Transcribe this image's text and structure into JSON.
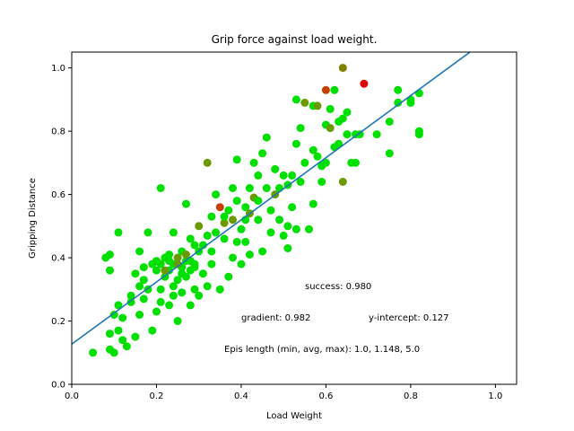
{
  "chart_data": {
    "type": "scatter",
    "title": "Grip force against load weight.",
    "xlabel": "Load Weight",
    "ylabel": "Gripping Distance",
    "xlim": [
      0.0,
      1.05
    ],
    "ylim": [
      0.0,
      1.05
    ],
    "xticks": [
      "0.0",
      "0.2",
      "0.4",
      "0.6",
      "0.8",
      "1.0"
    ],
    "yticks": [
      "0.0",
      "0.2",
      "0.4",
      "0.6",
      "0.8",
      "1.0"
    ],
    "grid": false,
    "fit_line": {
      "gradient": 0.982,
      "intercept": 0.127,
      "color": "#1f77b4"
    },
    "annotations": {
      "success": "success: 0.980",
      "gradient": "gradient: 0.982",
      "intercept": "y-intercept: 0.127",
      "episodes": "Epis length (min, avg, max): 1.0, 1.148, 5.0"
    },
    "colors": {
      "green": "#00e000",
      "olive": "#6a9a00",
      "dark_olive": "#808000",
      "orange_red": "#c84000",
      "red": "#e00000"
    },
    "points": [
      {
        "x": 0.05,
        "y": 0.1,
        "c": "green"
      },
      {
        "x": 0.08,
        "y": 0.4,
        "c": "green"
      },
      {
        "x": 0.09,
        "y": 0.41,
        "c": "green"
      },
      {
        "x": 0.09,
        "y": 0.36,
        "c": "green"
      },
      {
        "x": 0.09,
        "y": 0.16,
        "c": "green"
      },
      {
        "x": 0.09,
        "y": 0.11,
        "c": "green"
      },
      {
        "x": 0.1,
        "y": 0.22,
        "c": "green"
      },
      {
        "x": 0.1,
        "y": 0.1,
        "c": "green"
      },
      {
        "x": 0.11,
        "y": 0.25,
        "c": "green"
      },
      {
        "x": 0.11,
        "y": 0.17,
        "c": "green"
      },
      {
        "x": 0.11,
        "y": 0.48,
        "c": "green"
      },
      {
        "x": 0.12,
        "y": 0.21,
        "c": "green"
      },
      {
        "x": 0.12,
        "y": 0.14,
        "c": "green"
      },
      {
        "x": 0.13,
        "y": 0.12,
        "c": "green"
      },
      {
        "x": 0.14,
        "y": 0.28,
        "c": "green"
      },
      {
        "x": 0.14,
        "y": 0.26,
        "c": "green"
      },
      {
        "x": 0.15,
        "y": 0.15,
        "c": "green"
      },
      {
        "x": 0.15,
        "y": 0.35,
        "c": "green"
      },
      {
        "x": 0.16,
        "y": 0.22,
        "c": "green"
      },
      {
        "x": 0.16,
        "y": 0.42,
        "c": "green"
      },
      {
        "x": 0.16,
        "y": 0.31,
        "c": "green"
      },
      {
        "x": 0.17,
        "y": 0.37,
        "c": "green"
      },
      {
        "x": 0.17,
        "y": 0.33,
        "c": "green"
      },
      {
        "x": 0.18,
        "y": 0.48,
        "c": "green"
      },
      {
        "x": 0.19,
        "y": 0.17,
        "c": "green"
      },
      {
        "x": 0.19,
        "y": 0.38,
        "c": "green"
      },
      {
        "x": 0.2,
        "y": 0.23,
        "c": "green"
      },
      {
        "x": 0.2,
        "y": 0.36,
        "c": "green"
      },
      {
        "x": 0.21,
        "y": 0.62,
        "c": "green"
      },
      {
        "x": 0.21,
        "y": 0.3,
        "c": "green"
      },
      {
        "x": 0.21,
        "y": 0.38,
        "c": "green"
      },
      {
        "x": 0.22,
        "y": 0.4,
        "c": "green"
      },
      {
        "x": 0.22,
        "y": 0.34,
        "c": "green"
      },
      {
        "x": 0.23,
        "y": 0.25,
        "c": "green"
      },
      {
        "x": 0.23,
        "y": 0.41,
        "c": "green"
      },
      {
        "x": 0.23,
        "y": 0.36,
        "c": "green"
      },
      {
        "x": 0.24,
        "y": 0.31,
        "c": "green"
      },
      {
        "x": 0.24,
        "y": 0.48,
        "c": "green"
      },
      {
        "x": 0.24,
        "y": 0.38,
        "c": "green"
      },
      {
        "x": 0.25,
        "y": 0.2,
        "c": "green"
      },
      {
        "x": 0.25,
        "y": 0.33,
        "c": "green"
      },
      {
        "x": 0.25,
        "y": 0.4,
        "c": "olive"
      },
      {
        "x": 0.26,
        "y": 0.37,
        "c": "green"
      },
      {
        "x": 0.26,
        "y": 0.29,
        "c": "green"
      },
      {
        "x": 0.26,
        "y": 0.42,
        "c": "green"
      },
      {
        "x": 0.27,
        "y": 0.39,
        "c": "green"
      },
      {
        "x": 0.27,
        "y": 0.57,
        "c": "green"
      },
      {
        "x": 0.27,
        "y": 0.34,
        "c": "green"
      },
      {
        "x": 0.28,
        "y": 0.46,
        "c": "green"
      },
      {
        "x": 0.28,
        "y": 0.25,
        "c": "green"
      },
      {
        "x": 0.28,
        "y": 0.36,
        "c": "green"
      },
      {
        "x": 0.29,
        "y": 0.3,
        "c": "green"
      },
      {
        "x": 0.29,
        "y": 0.44,
        "c": "green"
      },
      {
        "x": 0.29,
        "y": 0.38,
        "c": "green"
      },
      {
        "x": 0.3,
        "y": 0.5,
        "c": "olive"
      },
      {
        "x": 0.3,
        "y": 0.28,
        "c": "green"
      },
      {
        "x": 0.3,
        "y": 0.42,
        "c": "green"
      },
      {
        "x": 0.31,
        "y": 0.35,
        "c": "green"
      },
      {
        "x": 0.32,
        "y": 0.7,
        "c": "olive"
      },
      {
        "x": 0.32,
        "y": 0.31,
        "c": "green"
      },
      {
        "x": 0.32,
        "y": 0.47,
        "c": "green"
      },
      {
        "x": 0.33,
        "y": 0.53,
        "c": "green"
      },
      {
        "x": 0.33,
        "y": 0.42,
        "c": "green"
      },
      {
        "x": 0.34,
        "y": 0.6,
        "c": "green"
      },
      {
        "x": 0.35,
        "y": 0.56,
        "c": "orange_red"
      },
      {
        "x": 0.35,
        "y": 0.3,
        "c": "green"
      },
      {
        "x": 0.36,
        "y": 0.51,
        "c": "olive"
      },
      {
        "x": 0.36,
        "y": 0.46,
        "c": "green"
      },
      {
        "x": 0.37,
        "y": 0.55,
        "c": "green"
      },
      {
        "x": 0.37,
        "y": 0.34,
        "c": "green"
      },
      {
        "x": 0.38,
        "y": 0.62,
        "c": "green"
      },
      {
        "x": 0.38,
        "y": 0.52,
        "c": "olive"
      },
      {
        "x": 0.39,
        "y": 0.71,
        "c": "green"
      },
      {
        "x": 0.39,
        "y": 0.45,
        "c": "green"
      },
      {
        "x": 0.4,
        "y": 0.49,
        "c": "green"
      },
      {
        "x": 0.4,
        "y": 0.38,
        "c": "green"
      },
      {
        "x": 0.41,
        "y": 0.56,
        "c": "green"
      },
      {
        "x": 0.41,
        "y": 0.45,
        "c": "green"
      },
      {
        "x": 0.42,
        "y": 0.62,
        "c": "green"
      },
      {
        "x": 0.42,
        "y": 0.54,
        "c": "olive"
      },
      {
        "x": 0.43,
        "y": 0.7,
        "c": "green"
      },
      {
        "x": 0.43,
        "y": 0.59,
        "c": "olive"
      },
      {
        "x": 0.44,
        "y": 0.52,
        "c": "green"
      },
      {
        "x": 0.44,
        "y": 0.66,
        "c": "green"
      },
      {
        "x": 0.45,
        "y": 0.42,
        "c": "green"
      },
      {
        "x": 0.45,
        "y": 0.73,
        "c": "green"
      },
      {
        "x": 0.46,
        "y": 0.78,
        "c": "green"
      },
      {
        "x": 0.46,
        "y": 0.62,
        "c": "green"
      },
      {
        "x": 0.47,
        "y": 0.55,
        "c": "green"
      },
      {
        "x": 0.48,
        "y": 0.6,
        "c": "olive"
      },
      {
        "x": 0.48,
        "y": 0.68,
        "c": "green"
      },
      {
        "x": 0.49,
        "y": 0.52,
        "c": "green"
      },
      {
        "x": 0.5,
        "y": 0.47,
        "c": "green"
      },
      {
        "x": 0.5,
        "y": 0.66,
        "c": "green"
      },
      {
        "x": 0.51,
        "y": 0.43,
        "c": "green"
      },
      {
        "x": 0.51,
        "y": 0.63,
        "c": "green"
      },
      {
        "x": 0.52,
        "y": 0.56,
        "c": "green"
      },
      {
        "x": 0.52,
        "y": 0.66,
        "c": "green"
      },
      {
        "x": 0.53,
        "y": 0.49,
        "c": "green"
      },
      {
        "x": 0.53,
        "y": 0.76,
        "c": "green"
      },
      {
        "x": 0.53,
        "y": 0.9,
        "c": "green"
      },
      {
        "x": 0.54,
        "y": 0.64,
        "c": "green"
      },
      {
        "x": 0.55,
        "y": 0.7,
        "c": "green"
      },
      {
        "x": 0.55,
        "y": 0.89,
        "c": "olive"
      },
      {
        "x": 0.56,
        "y": 0.49,
        "c": "green"
      },
      {
        "x": 0.57,
        "y": 0.88,
        "c": "green"
      },
      {
        "x": 0.57,
        "y": 0.57,
        "c": "green"
      },
      {
        "x": 0.58,
        "y": 0.72,
        "c": "green"
      },
      {
        "x": 0.58,
        "y": 0.88,
        "c": "olive"
      },
      {
        "x": 0.59,
        "y": 0.64,
        "c": "green"
      },
      {
        "x": 0.6,
        "y": 0.93,
        "c": "orange_red"
      },
      {
        "x": 0.6,
        "y": 0.82,
        "c": "green"
      },
      {
        "x": 0.6,
        "y": 0.7,
        "c": "green"
      },
      {
        "x": 0.61,
        "y": 0.81,
        "c": "olive"
      },
      {
        "x": 0.61,
        "y": 0.87,
        "c": "green"
      },
      {
        "x": 0.62,
        "y": 0.93,
        "c": "green"
      },
      {
        "x": 0.62,
        "y": 0.75,
        "c": "green"
      },
      {
        "x": 0.63,
        "y": 0.76,
        "c": "green"
      },
      {
        "x": 0.63,
        "y": 0.83,
        "c": "green"
      },
      {
        "x": 0.64,
        "y": 0.64,
        "c": "olive"
      },
      {
        "x": 0.64,
        "y": 1.0,
        "c": "dark_olive"
      },
      {
        "x": 0.64,
        "y": 0.84,
        "c": "green"
      },
      {
        "x": 0.65,
        "y": 0.86,
        "c": "green"
      },
      {
        "x": 0.65,
        "y": 0.79,
        "c": "green"
      },
      {
        "x": 0.66,
        "y": 0.7,
        "c": "green"
      },
      {
        "x": 0.67,
        "y": 0.79,
        "c": "green"
      },
      {
        "x": 0.67,
        "y": 0.7,
        "c": "green"
      },
      {
        "x": 0.68,
        "y": 0.79,
        "c": "green"
      },
      {
        "x": 0.69,
        "y": 0.95,
        "c": "red"
      },
      {
        "x": 0.72,
        "y": 0.79,
        "c": "green"
      },
      {
        "x": 0.75,
        "y": 0.73,
        "c": "green"
      },
      {
        "x": 0.75,
        "y": 0.83,
        "c": "green"
      },
      {
        "x": 0.77,
        "y": 0.93,
        "c": "green"
      },
      {
        "x": 0.77,
        "y": 0.89,
        "c": "green"
      },
      {
        "x": 0.8,
        "y": 0.89,
        "c": "green"
      },
      {
        "x": 0.8,
        "y": 0.9,
        "c": "green"
      },
      {
        "x": 0.82,
        "y": 0.8,
        "c": "green"
      },
      {
        "x": 0.82,
        "y": 0.92,
        "c": "green"
      },
      {
        "x": 0.82,
        "y": 0.79,
        "c": "green"
      },
      {
        "x": 0.22,
        "y": 0.36,
        "c": "olive"
      },
      {
        "x": 0.25,
        "y": 0.38,
        "c": "olive"
      },
      {
        "x": 0.27,
        "y": 0.41,
        "c": "olive"
      },
      {
        "x": 0.29,
        "y": 0.37,
        "c": "green"
      },
      {
        "x": 0.2,
        "y": 0.39,
        "c": "green"
      },
      {
        "x": 0.18,
        "y": 0.3,
        "c": "green"
      },
      {
        "x": 0.21,
        "y": 0.26,
        "c": "green"
      },
      {
        "x": 0.23,
        "y": 0.39,
        "c": "green"
      },
      {
        "x": 0.26,
        "y": 0.35,
        "c": "green"
      },
      {
        "x": 0.28,
        "y": 0.39,
        "c": "green"
      },
      {
        "x": 0.31,
        "y": 0.44,
        "c": "green"
      },
      {
        "x": 0.34,
        "y": 0.48,
        "c": "green"
      },
      {
        "x": 0.36,
        "y": 0.53,
        "c": "green"
      },
      {
        "x": 0.39,
        "y": 0.58,
        "c": "green"
      },
      {
        "x": 0.41,
        "y": 0.52,
        "c": "green"
      },
      {
        "x": 0.44,
        "y": 0.58,
        "c": "green"
      },
      {
        "x": 0.47,
        "y": 0.48,
        "c": "green"
      },
      {
        "x": 0.49,
        "y": 0.62,
        "c": "green"
      },
      {
        "x": 0.51,
        "y": 0.5,
        "c": "green"
      },
      {
        "x": 0.54,
        "y": 0.81,
        "c": "green"
      },
      {
        "x": 0.57,
        "y": 0.74,
        "c": "green"
      },
      {
        "x": 0.59,
        "y": 0.69,
        "c": "green"
      },
      {
        "x": 0.38,
        "y": 0.4,
        "c": "green"
      },
      {
        "x": 0.42,
        "y": 0.41,
        "c": "green"
      },
      {
        "x": 0.33,
        "y": 0.38,
        "c": "green"
      },
      {
        "x": 0.24,
        "y": 0.28,
        "c": "green"
      },
      {
        "x": 0.17,
        "y": 0.27,
        "c": "green"
      }
    ]
  }
}
